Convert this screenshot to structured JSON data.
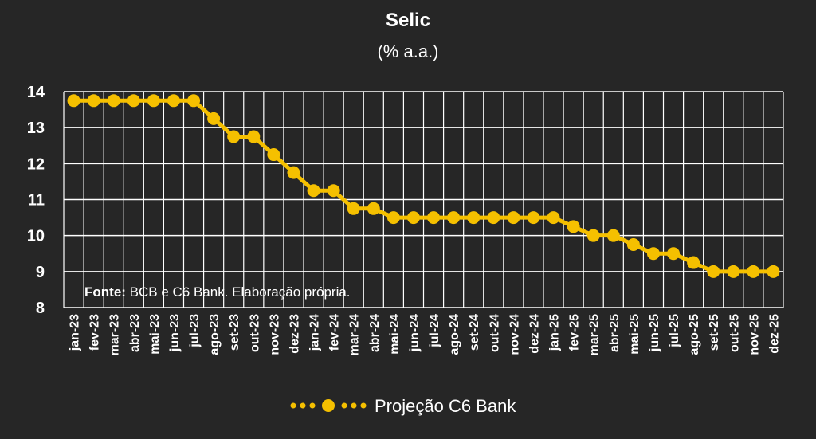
{
  "chart_data": {
    "type": "line",
    "title": "Selic",
    "subtitle": "(% a.a.)",
    "source_label": "Fonte:",
    "source_text": " BCB e C6 Bank. Elaboração própria.",
    "ylim": [
      8,
      14
    ],
    "yticks": [
      8,
      9,
      10,
      11,
      12,
      13,
      14
    ],
    "grid": true,
    "legend_position": "bottom",
    "categories": [
      "jan-23",
      "fev-23",
      "mar-23",
      "abr-23",
      "mai-23",
      "jun-23",
      "jul-23",
      "ago-23",
      "set-23",
      "out-23",
      "nov-23",
      "dez-23",
      "jan-24",
      "fev-24",
      "mar-24",
      "abr-24",
      "mai-24",
      "jun-24",
      "jul-24",
      "ago-24",
      "set-24",
      "out-24",
      "nov-24",
      "dez-24",
      "jan-25",
      "fev-25",
      "mar-25",
      "abr-25",
      "mai-25",
      "jun-25",
      "jul-25",
      "ago-25",
      "set-25",
      "out-25",
      "nov-25",
      "dez-25"
    ],
    "series": [
      {
        "name": "Projeção C6 Bank",
        "color": "#F5C000",
        "values": [
          13.75,
          13.75,
          13.75,
          13.75,
          13.75,
          13.75,
          13.75,
          13.25,
          12.75,
          12.75,
          12.25,
          11.75,
          11.25,
          11.25,
          10.75,
          10.75,
          10.5,
          10.5,
          10.5,
          10.5,
          10.5,
          10.5,
          10.5,
          10.5,
          10.5,
          10.25,
          10.0,
          10.0,
          9.75,
          9.5,
          9.5,
          9.25,
          9.0,
          9.0,
          9.0,
          9.0
        ]
      }
    ]
  }
}
